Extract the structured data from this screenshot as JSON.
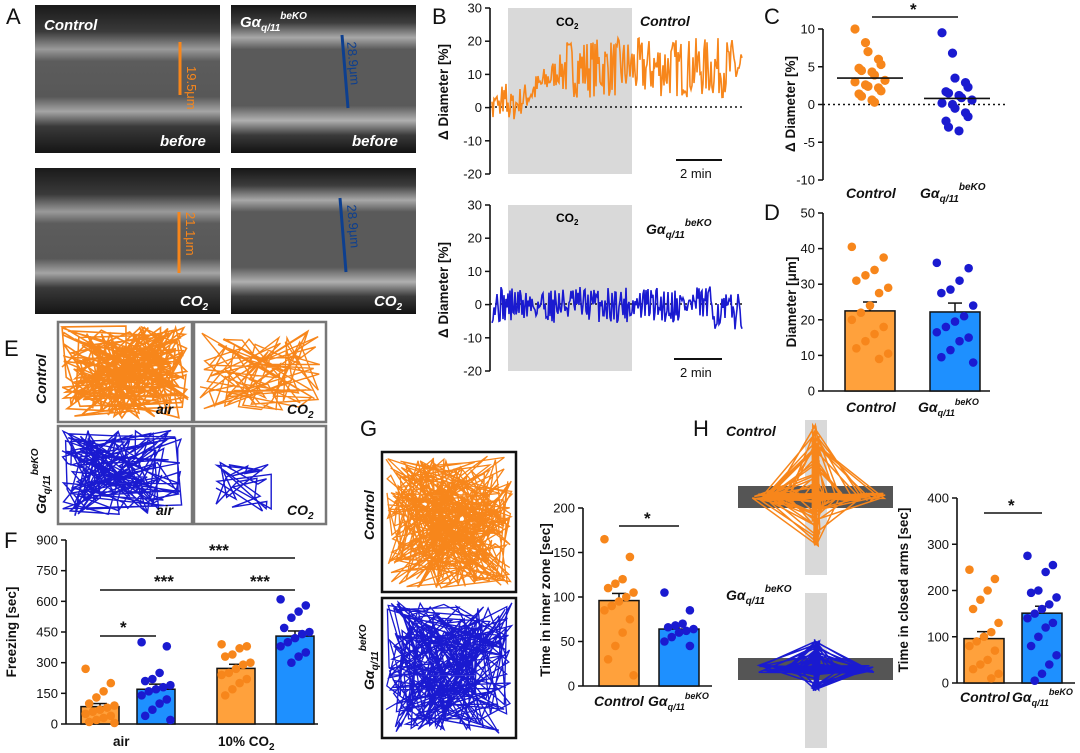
{
  "colors": {
    "control": "#f7861b",
    "control_bar": "#ffa13c",
    "knockout": "#1a1ad0",
    "knockout_bar": "#1e90ff",
    "co2_shade": "#d9d9d9",
    "dark_blue_scale": "#0d3f8f"
  },
  "panels": {
    "A": {
      "letter": "A",
      "top_left_label": "Control",
      "top_right_label": "Gα",
      "top_right_sub": "q/11",
      "top_right_sup": "beKO",
      "before": "before",
      "co2_main": "CO",
      "co2_sub": "2",
      "measure_tl": "19.5μm",
      "measure_tr": "28.9μm",
      "measure_bl": "21.1μm",
      "measure_br": "28.9μm"
    },
    "B": {
      "letter": "B",
      "ylabel": "Δ Diameter [%]",
      "top_label": "Control",
      "bottom_label": "Gα",
      "bottom_sub": "q/11",
      "bottom_sup": "beKO",
      "co2_main": "CO",
      "co2_sub": "2",
      "scalebar": "2 min",
      "yticks": [
        "30",
        "20",
        "10",
        "0",
        "-10",
        "-20"
      ]
    },
    "C": {
      "letter": "C",
      "ylabel": "Δ Diameter [%]",
      "yticks": [
        "10",
        "5",
        "0",
        "-5",
        "-10"
      ],
      "group1": "Control",
      "group2_main": "Gα",
      "group2_sub": "q/11",
      "group2_sup": "beKO",
      "sig": "*"
    },
    "D": {
      "letter": "D",
      "ylabel": "Diameter [μm]",
      "yticks": [
        "50",
        "40",
        "30",
        "20",
        "10",
        "0"
      ],
      "group1": "Control",
      "group2_main": "Gα",
      "group2_sub": "q/11",
      "group2_sup": "beKO"
    },
    "E": {
      "letter": "E",
      "row1": "Control",
      "row2_main": "Gα",
      "row2_sub": "q/11",
      "row2_sup": "beKO",
      "air": "air",
      "co2_main": "CO",
      "co2_sub": "2"
    },
    "F": {
      "letter": "F",
      "ylabel": "Freezing [sec]",
      "yticks": [
        "900",
        "750",
        "600",
        "450",
        "300",
        "150",
        "0"
      ],
      "xcat1": "air",
      "xcat2": "10% CO",
      "xcat2_sub": "2",
      "sig1": "***",
      "sig2": "***",
      "sig3": "***",
      "sig4": "*"
    },
    "G": {
      "letter": "G",
      "row1": "Control",
      "row2_main": "Gα",
      "row2_sub": "q/11",
      "row2_sup": "beKO",
      "ylabel": "Time in inner zone [sec]",
      "yticks": [
        "200",
        "150",
        "100",
        "50",
        "0"
      ],
      "group1": "Control",
      "group2_main": "Gα",
      "group2_sub": "q/11",
      "group2_sup": "beKO",
      "sig": "*"
    },
    "H": {
      "letter": "H",
      "row1": "Control",
      "row2_main": "Gα",
      "row2_sub": "q/11",
      "row2_sup": "beKO",
      "ylabel": "Time in closed arms [sec]",
      "yticks": [
        "400",
        "300",
        "200",
        "100",
        "0"
      ],
      "group1": "Control",
      "group2_main": "Gα",
      "group2_sub": "q/11",
      "group2_sup": "beKO",
      "sig": "*"
    }
  },
  "chart_data": [
    {
      "panel": "C",
      "type": "scatter",
      "ylabel": "Δ Diameter [%]",
      "ylim": [
        -10,
        10
      ],
      "categories": [
        "Control",
        "Gαq/11beKO"
      ],
      "series": [
        {
          "name": "Control",
          "values": [
            10.0,
            8.2,
            7.0,
            6.0,
            5.3,
            4.8,
            4.5,
            4.3,
            3.9,
            3.2,
            3.0,
            2.6,
            2.4,
            2.2,
            1.8,
            1.4,
            1.1,
            0.6,
            0.3
          ],
          "mean": 3.5
        },
        {
          "name": "Gαq/11beKO",
          "values": [
            9.5,
            6.8,
            3.5,
            2.9,
            2.3,
            1.7,
            1.5,
            1.2,
            0.9,
            0.6,
            0.2,
            0.0,
            -0.5,
            -1.1,
            -1.6,
            -2.2,
            -3.0,
            -3.5
          ],
          "mean": 0.8
        }
      ]
    },
    {
      "panel": "D",
      "type": "bar",
      "ylabel": "Diameter [μm]",
      "ylim": [
        0,
        50
      ],
      "categories": [
        "Control",
        "Gαq/11beKO"
      ],
      "values": [
        22.5,
        22.2
      ],
      "sem": [
        2.5,
        2.5
      ],
      "points": [
        [
          40.5,
          37.5,
          34.0,
          32.5,
          31.0,
          29.0,
          27.5,
          24.0,
          22.0,
          20.0,
          18.0,
          16.0,
          14.0,
          12.0,
          10.5,
          9.0
        ],
        [
          36.0,
          34.5,
          31.0,
          28.5,
          27.5,
          24.0,
          21.0,
          19.5,
          18.0,
          16.5,
          15.0,
          14.0,
          11.5,
          9.5,
          8.0
        ]
      ]
    },
    {
      "panel": "F",
      "type": "bar",
      "ylabel": "Freezing [sec]",
      "ylim": [
        0,
        900
      ],
      "categories": [
        "air",
        "10% CO2"
      ],
      "series": [
        {
          "name": "Control",
          "values": [
            85,
            272
          ],
          "sem": [
            15,
            20
          ],
          "points": [
            [
              270,
              200,
              160,
              130,
              100,
              90,
              80,
              70,
              60,
              50,
              40,
              30,
              20,
              10,
              5
            ],
            [
              390,
              380,
              370,
              340,
              330,
              300,
              290,
              270,
              250,
              240,
              220,
              200,
              170,
              140
            ]
          ]
        },
        {
          "name": "Gαq/11beKO",
          "values": [
            170,
            430
          ],
          "sem": [
            25,
            25
          ],
          "points": [
            [
              400,
              380,
              250,
              220,
              210,
              190,
              180,
              170,
              160,
              140,
              120,
              100,
              70,
              40,
              20
            ],
            [
              610,
              580,
              550,
              520,
              470,
              450,
              440,
              420,
              400,
              380,
              350,
              330,
              300
            ]
          ]
        }
      ]
    },
    {
      "panel": "G",
      "type": "bar",
      "ylabel": "Time in inner zone [sec]",
      "ylim": [
        0,
        200
      ],
      "categories": [
        "Control",
        "Gαq/11beKO"
      ],
      "values": [
        96,
        64
      ],
      "sem": [
        8,
        5
      ],
      "points": [
        [
          165,
          145,
          120,
          115,
          110,
          105,
          100,
          95,
          90,
          85,
          75,
          60,
          45,
          30,
          12
        ],
        [
          105,
          85,
          70,
          68,
          66,
          64,
          62,
          60,
          55,
          50,
          45
        ]
      ]
    },
    {
      "panel": "H",
      "type": "bar",
      "ylabel": "Time in closed arms [sec]",
      "ylim": [
        0,
        400
      ],
      "categories": [
        "Control",
        "Gαq/11beKO"
      ],
      "values": [
        96,
        151
      ],
      "sem": [
        15,
        15
      ],
      "points": [
        [
          245,
          225,
          200,
          180,
          160,
          130,
          110,
          100,
          90,
          80,
          70,
          50,
          40,
          30,
          20,
          10
        ],
        [
          275,
          255,
          240,
          200,
          195,
          185,
          170,
          160,
          150,
          140,
          130,
          120,
          100,
          80,
          60,
          40,
          20,
          5
        ]
      ]
    }
  ]
}
